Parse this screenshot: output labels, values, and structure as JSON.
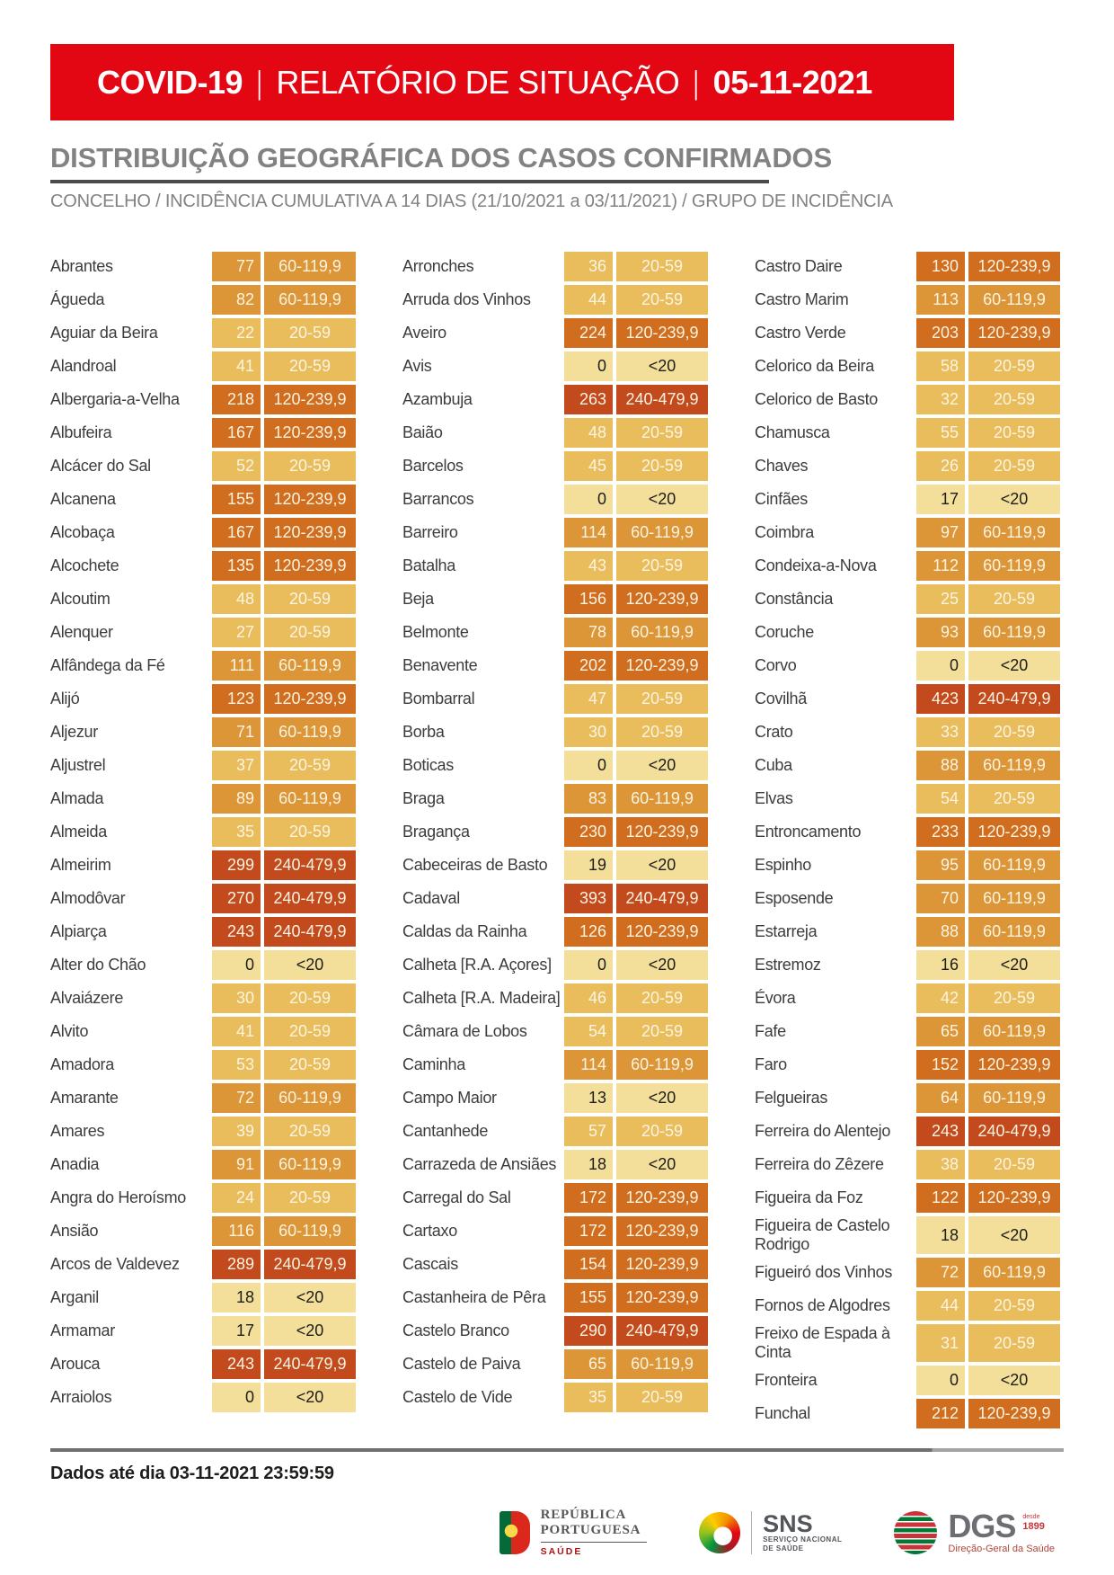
{
  "palette": {
    "bannerRed": "#e30613",
    "titleGray": "#828282",
    "ruleDark": "#4a4a4a",
    "band0": "#f3df9a",
    "band1": "#eabd5c",
    "band2": "#dd9637",
    "band3": "#d06d1e",
    "band4": "#c24a1d",
    "cellTextLight": "#fbf4e2",
    "cellTextDark": "#1d1d1b"
  },
  "banner": {
    "product": "COVID-19",
    "separator": "|",
    "report": "RELATÓRIO DE SITUAÇÃO",
    "date": "05-11-2021"
  },
  "section": {
    "title": "DISTRIBUIÇÃO GEOGRÁFICA DOS CASOS CONFIRMADOS",
    "subtitle": "CONCELHO / INCIDÊNCIA CUMULATIVA A 14 DIAS (21/10/2021 a 03/11/2021) / GRUPO DE INCIDÊNCIA"
  },
  "table": {
    "columns": [
      {
        "rows": [
          {
            "name": "Abrantes",
            "value": "77",
            "group": "60-119,9"
          },
          {
            "name": "Águeda",
            "value": "82",
            "group": "60-119,9"
          },
          {
            "name": "Aguiar da Beira",
            "value": "22",
            "group": "20-59"
          },
          {
            "name": "Alandroal",
            "value": "41",
            "group": "20-59"
          },
          {
            "name": "Albergaria-a-Velha",
            "value": "218",
            "group": "120-239,9"
          },
          {
            "name": "Albufeira",
            "value": "167",
            "group": "120-239,9"
          },
          {
            "name": "Alcácer do Sal",
            "value": "52",
            "group": "20-59"
          },
          {
            "name": "Alcanena",
            "value": "155",
            "group": "120-239,9"
          },
          {
            "name": "Alcobaça",
            "value": "167",
            "group": "120-239,9"
          },
          {
            "name": "Alcochete",
            "value": "135",
            "group": "120-239,9"
          },
          {
            "name": "Alcoutim",
            "value": "48",
            "group": "20-59"
          },
          {
            "name": "Alenquer",
            "value": "27",
            "group": "20-59"
          },
          {
            "name": "Alfândega da Fé",
            "value": "111",
            "group": "60-119,9"
          },
          {
            "name": "Alijó",
            "value": "123",
            "group": "120-239,9"
          },
          {
            "name": "Aljezur",
            "value": "71",
            "group": "60-119,9"
          },
          {
            "name": "Aljustrel",
            "value": "37",
            "group": "20-59"
          },
          {
            "name": "Almada",
            "value": "89",
            "group": "60-119,9"
          },
          {
            "name": "Almeida",
            "value": "35",
            "group": "20-59"
          },
          {
            "name": "Almeirim",
            "value": "299",
            "group": "240-479,9"
          },
          {
            "name": "Almodôvar",
            "value": "270",
            "group": "240-479,9"
          },
          {
            "name": "Alpiarça",
            "value": "243",
            "group": "240-479,9"
          },
          {
            "name": "Alter do Chão",
            "value": "0",
            "group": "<20"
          },
          {
            "name": "Alvaiázere",
            "value": "30",
            "group": "20-59"
          },
          {
            "name": "Alvito",
            "value": "41",
            "group": "20-59"
          },
          {
            "name": "Amadora",
            "value": "53",
            "group": "20-59"
          },
          {
            "name": "Amarante",
            "value": "72",
            "group": "60-119,9"
          },
          {
            "name": "Amares",
            "value": "39",
            "group": "20-59"
          },
          {
            "name": "Anadia",
            "value": "91",
            "group": "60-119,9"
          },
          {
            "name": "Angra do Heroísmo",
            "value": "24",
            "group": "20-59"
          },
          {
            "name": "Ansião",
            "value": "116",
            "group": "60-119,9"
          },
          {
            "name": "Arcos de Valdevez",
            "value": "289",
            "group": "240-479,9"
          },
          {
            "name": "Arganil",
            "value": "18",
            "group": "<20"
          },
          {
            "name": "Armamar",
            "value": "17",
            "group": "<20"
          },
          {
            "name": "Arouca",
            "value": "243",
            "group": "240-479,9"
          },
          {
            "name": "Arraiolos",
            "value": "0",
            "group": "<20"
          }
        ]
      },
      {
        "rows": [
          {
            "name": "Arronches",
            "value": "36",
            "group": "20-59"
          },
          {
            "name": "Arruda dos Vinhos",
            "value": "44",
            "group": "20-59"
          },
          {
            "name": "Aveiro",
            "value": "224",
            "group": "120-239,9"
          },
          {
            "name": "Avis",
            "value": "0",
            "group": "<20"
          },
          {
            "name": "Azambuja",
            "value": "263",
            "group": "240-479,9"
          },
          {
            "name": "Baião",
            "value": "48",
            "group": "20-59"
          },
          {
            "name": "Barcelos",
            "value": "45",
            "group": "20-59"
          },
          {
            "name": "Barrancos",
            "value": "0",
            "group": "<20"
          },
          {
            "name": "Barreiro",
            "value": "114",
            "group": "60-119,9"
          },
          {
            "name": "Batalha",
            "value": "43",
            "group": "20-59"
          },
          {
            "name": "Beja",
            "value": "156",
            "group": "120-239,9"
          },
          {
            "name": "Belmonte",
            "value": "78",
            "group": "60-119,9"
          },
          {
            "name": "Benavente",
            "value": "202",
            "group": "120-239,9"
          },
          {
            "name": "Bombarral",
            "value": "47",
            "group": "20-59"
          },
          {
            "name": "Borba",
            "value": "30",
            "group": "20-59"
          },
          {
            "name": "Boticas",
            "value": "0",
            "group": "<20"
          },
          {
            "name": "Braga",
            "value": "83",
            "group": "60-119,9"
          },
          {
            "name": "Bragança",
            "value": "230",
            "group": "120-239,9"
          },
          {
            "name": "Cabeceiras de Basto",
            "value": "19",
            "group": "<20"
          },
          {
            "name": "Cadaval",
            "value": "393",
            "group": "240-479,9"
          },
          {
            "name": "Caldas da Rainha",
            "value": "126",
            "group": "120-239,9"
          },
          {
            "name": "Calheta [R.A. Açores]",
            "value": "0",
            "group": "<20"
          },
          {
            "name": "Calheta [R.A. Madeira]",
            "value": "46",
            "group": "20-59"
          },
          {
            "name": "Câmara de Lobos",
            "value": "54",
            "group": "20-59"
          },
          {
            "name": "Caminha",
            "value": "114",
            "group": "60-119,9"
          },
          {
            "name": "Campo Maior",
            "value": "13",
            "group": "<20"
          },
          {
            "name": "Cantanhede",
            "value": "57",
            "group": "20-59"
          },
          {
            "name": "Carrazeda de Ansiães",
            "value": "18",
            "group": "<20"
          },
          {
            "name": "Carregal do Sal",
            "value": "172",
            "group": "120-239,9"
          },
          {
            "name": "Cartaxo",
            "value": "172",
            "group": "120-239,9"
          },
          {
            "name": "Cascais",
            "value": "154",
            "group": "120-239,9"
          },
          {
            "name": "Castanheira de Pêra",
            "value": "155",
            "group": "120-239,9"
          },
          {
            "name": "Castelo Branco",
            "value": "290",
            "group": "240-479,9"
          },
          {
            "name": "Castelo de Paiva",
            "value": "65",
            "group": "60-119,9"
          },
          {
            "name": "Castelo de Vide",
            "value": "35",
            "group": "20-59"
          }
        ]
      },
      {
        "rows": [
          {
            "name": "Castro Daire",
            "value": "130",
            "group": "120-239,9"
          },
          {
            "name": "Castro Marim",
            "value": "113",
            "group": "60-119,9"
          },
          {
            "name": "Castro Verde",
            "value": "203",
            "group": "120-239,9"
          },
          {
            "name": "Celorico da Beira",
            "value": "58",
            "group": "20-59"
          },
          {
            "name": "Celorico de Basto",
            "value": "32",
            "group": "20-59"
          },
          {
            "name": "Chamusca",
            "value": "55",
            "group": "20-59"
          },
          {
            "name": "Chaves",
            "value": "26",
            "group": "20-59"
          },
          {
            "name": "Cinfães",
            "value": "17",
            "group": "<20"
          },
          {
            "name": "Coimbra",
            "value": "97",
            "group": "60-119,9"
          },
          {
            "name": "Condeixa-a-Nova",
            "value": "112",
            "group": "60-119,9"
          },
          {
            "name": "Constância",
            "value": "25",
            "group": "20-59"
          },
          {
            "name": "Coruche",
            "value": "93",
            "group": "60-119,9"
          },
          {
            "name": "Corvo",
            "value": "0",
            "group": "<20"
          },
          {
            "name": "Covilhã",
            "value": "423",
            "group": "240-479,9"
          },
          {
            "name": "Crato",
            "value": "33",
            "group": "20-59"
          },
          {
            "name": "Cuba",
            "value": "88",
            "group": "60-119,9"
          },
          {
            "name": "Elvas",
            "value": "54",
            "group": "20-59"
          },
          {
            "name": "Entroncamento",
            "value": "233",
            "group": "120-239,9"
          },
          {
            "name": "Espinho",
            "value": "95",
            "group": "60-119,9"
          },
          {
            "name": "Esposende",
            "value": "70",
            "group": "60-119,9"
          },
          {
            "name": "Estarreja",
            "value": "88",
            "group": "60-119,9"
          },
          {
            "name": "Estremoz",
            "value": "16",
            "group": "<20"
          },
          {
            "name": "Évora",
            "value": "42",
            "group": "20-59"
          },
          {
            "name": "Fafe",
            "value": "65",
            "group": "60-119,9"
          },
          {
            "name": "Faro",
            "value": "152",
            "group": "120-239,9"
          },
          {
            "name": "Felgueiras",
            "value": "64",
            "group": "60-119,9"
          },
          {
            "name": "Ferreira do Alentejo",
            "value": "243",
            "group": "240-479,9"
          },
          {
            "name": "Ferreira do Zêzere",
            "value": "38",
            "group": "20-59"
          },
          {
            "name": "Figueira da Foz",
            "value": "122",
            "group": "120-239,9"
          },
          {
            "name": "Figueira de Castelo Rodrigo",
            "value": "18",
            "group": "<20"
          },
          {
            "name": "Figueiró dos Vinhos",
            "value": "72",
            "group": "60-119,9"
          },
          {
            "name": "Fornos de Algodres",
            "value": "44",
            "group": "20-59"
          },
          {
            "name": "Freixo de Espada à Cinta",
            "value": "31",
            "group": "20-59"
          },
          {
            "name": "Fronteira",
            "value": "0",
            "group": "<20"
          },
          {
            "name": "Funchal",
            "value": "212",
            "group": "120-239,9"
          }
        ]
      }
    ]
  },
  "footer": {
    "note": "Dados até dia 03-11-2021 23:59:59"
  },
  "logos": {
    "republica": {
      "line1": "REPÚBLICA",
      "line2": "PORTUGUESA",
      "sub": "SAÚDE"
    },
    "sns": {
      "abbr": "SNS",
      "sub1": "SERVIÇO NACIONAL",
      "sub2": "DE SAÚDE"
    },
    "dgs": {
      "abbr": "DGS",
      "since_word": "desde",
      "since_year": "1899",
      "sub": "Direção-Geral da Saúde"
    }
  }
}
